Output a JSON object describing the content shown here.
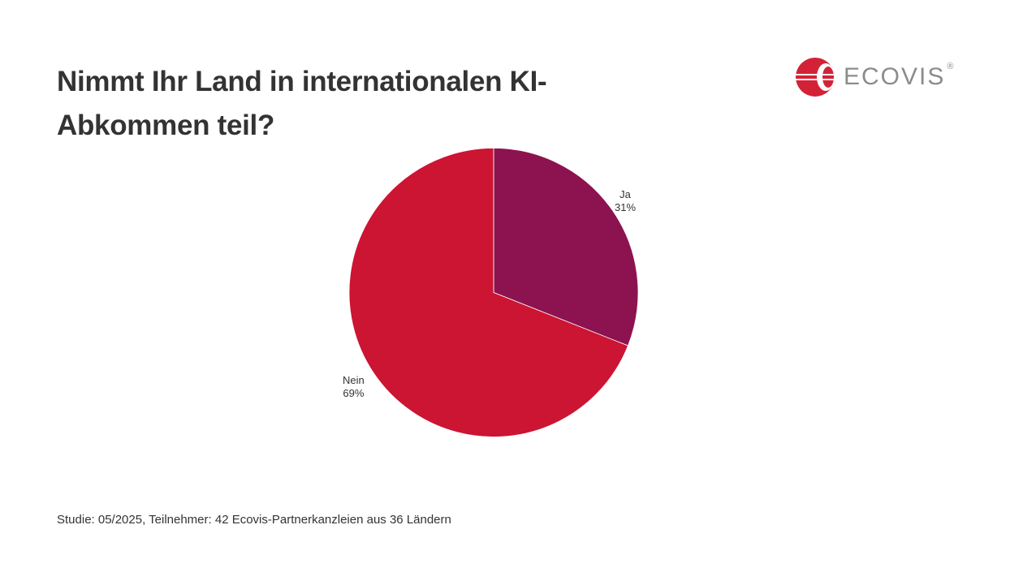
{
  "title": "Nimmt Ihr Land in internationalen KI-Abkommen teil?",
  "title_line1": "Nimmt Ihr Land in internationalen KI-",
  "title_line2": "Abkommen teil?",
  "logo": {
    "text": "ECOVIS",
    "registered": "®",
    "icon": "ecovis-logo-icon",
    "color": "#d32237"
  },
  "footer": "Studie: 05/2025, Teilnehmer: 42 Ecovis-Partnerkanzleien aus 36 Ländern",
  "labels": {
    "ja_name": "Ja",
    "ja_pct": "31%",
    "nein_name": "Nein",
    "nein_pct": "69%"
  },
  "chart_data": {
    "type": "pie",
    "title": "Nimmt Ihr Land in internationalen KI-Abkommen teil?",
    "categories": [
      "Ja",
      "Nein"
    ],
    "values": [
      31,
      69
    ],
    "unit": "%",
    "colors": [
      "#8c1350",
      "#cc1433"
    ],
    "start_angle": "12 o'clock, clockwise",
    "legend": "none (labels outside slices)",
    "note": "Studie: 05/2025, Teilnehmer: 42 Ecovis-Partnerkanzleien aus 36 Ländern"
  }
}
